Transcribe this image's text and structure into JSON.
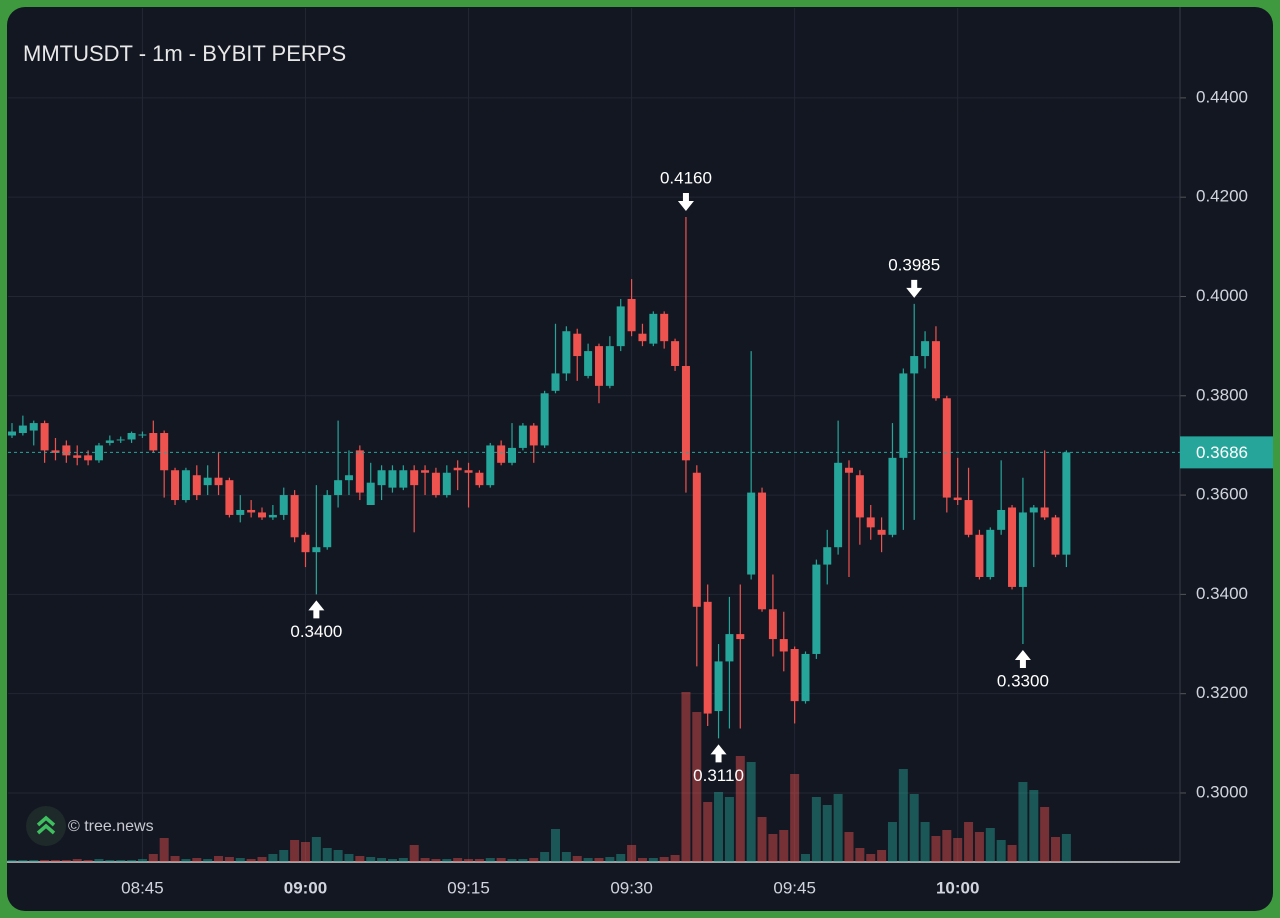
{
  "chart_data": {
    "type": "candlestick",
    "title": "MMTUSDT - 1m - BYBIT PERPS",
    "watermark": "© tree.news",
    "categories": [
      "08:33",
      "08:34",
      "08:35",
      "08:36",
      "08:37",
      "08:38",
      "08:39",
      "08:40",
      "08:41",
      "08:42",
      "08:43",
      "08:44",
      "08:45",
      "08:46",
      "08:47",
      "08:48",
      "08:49",
      "08:50",
      "08:51",
      "08:52",
      "08:53",
      "08:54",
      "08:55",
      "08:56",
      "08:57",
      "08:58",
      "08:59",
      "09:00",
      "09:01",
      "09:02",
      "09:03",
      "09:04",
      "09:05",
      "09:06",
      "09:07",
      "09:08",
      "09:09",
      "09:10",
      "09:11",
      "09:12",
      "09:13",
      "09:14",
      "09:15",
      "09:16",
      "09:17",
      "09:18",
      "09:19",
      "09:20",
      "09:21",
      "09:22",
      "09:23",
      "09:24",
      "09:25",
      "09:26",
      "09:27",
      "09:28",
      "09:29",
      "09:30",
      "09:31",
      "09:32",
      "09:33",
      "09:34",
      "09:35",
      "09:36",
      "09:37",
      "09:38",
      "09:39",
      "09:40",
      "09:41",
      "09:42",
      "09:43",
      "09:44",
      "09:45",
      "09:46",
      "09:47",
      "09:48",
      "09:49",
      "09:50",
      "09:51",
      "09:52",
      "09:53",
      "09:54",
      "09:55",
      "09:56",
      "09:57",
      "09:58",
      "09:59",
      "10:00",
      "10:01",
      "10:02",
      "10:03",
      "10:04",
      "10:05",
      "10:06",
      "10:07",
      "10:08",
      "10:09",
      "10:10"
    ],
    "open": [
      0.372,
      0.3725,
      0.373,
      0.3745,
      0.369,
      0.37,
      0.368,
      0.368,
      0.367,
      0.3705,
      0.371,
      0.3712,
      0.372,
      0.3725,
      0.3725,
      0.365,
      0.359,
      0.364,
      0.362,
      0.3635,
      0.363,
      0.356,
      0.357,
      0.3565,
      0.3555,
      0.356,
      0.36,
      0.352,
      0.3485,
      0.3495,
      0.36,
      0.363,
      0.369,
      0.358,
      0.362,
      0.3615,
      0.3615,
      0.365,
      0.365,
      0.3645,
      0.36,
      0.3655,
      0.365,
      0.3645,
      0.362,
      0.37,
      0.3665,
      0.3695,
      0.374,
      0.37,
      0.381,
      0.3845,
      0.3925,
      0.384,
      0.39,
      0.382,
      0.39,
      0.3995,
      0.3925,
      0.3905,
      0.3965,
      0.391,
      0.386,
      0.3645,
      0.3385,
      0.3165,
      0.3265,
      0.332,
      0.344,
      0.3605,
      0.337,
      0.331,
      0.329,
      0.3185,
      0.328,
      0.346,
      0.3495,
      0.3655,
      0.364,
      0.3555,
      0.353,
      0.352,
      0.3675,
      0.3845,
      0.388,
      0.391,
      0.3795,
      0.3595,
      0.359,
      0.352,
      0.3435,
      0.353,
      0.3575,
      0.3415,
      0.3565,
      0.3575,
      0.3555,
      0.348
    ],
    "high": [
      0.3745,
      0.376,
      0.375,
      0.375,
      0.3715,
      0.371,
      0.37,
      0.369,
      0.3705,
      0.372,
      0.3718,
      0.3728,
      0.3728,
      0.375,
      0.373,
      0.3655,
      0.3655,
      0.366,
      0.366,
      0.3685,
      0.3635,
      0.36,
      0.359,
      0.3575,
      0.358,
      0.3615,
      0.361,
      0.3525,
      0.362,
      0.361,
      0.375,
      0.369,
      0.37,
      0.3665,
      0.366,
      0.366,
      0.366,
      0.366,
      0.366,
      0.3655,
      0.366,
      0.367,
      0.3665,
      0.365,
      0.3705,
      0.371,
      0.3745,
      0.3745,
      0.3745,
      0.381,
      0.3945,
      0.394,
      0.3935,
      0.3905,
      0.3905,
      0.392,
      0.3995,
      0.4035,
      0.3945,
      0.397,
      0.397,
      0.3915,
      0.416,
      0.366,
      0.342,
      0.33,
      0.3395,
      0.342,
      0.389,
      0.3615,
      0.344,
      0.3365,
      0.3295,
      0.3285,
      0.347,
      0.353,
      0.375,
      0.367,
      0.365,
      0.358,
      0.3555,
      0.3745,
      0.3855,
      0.3985,
      0.393,
      0.394,
      0.38,
      0.3675,
      0.3655,
      0.353,
      0.3535,
      0.367,
      0.358,
      0.3635,
      0.358,
      0.369,
      0.356,
      0.369
    ],
    "low": [
      0.3715,
      0.372,
      0.37,
      0.3665,
      0.367,
      0.3665,
      0.366,
      0.366,
      0.3665,
      0.37,
      0.3705,
      0.3705,
      0.3715,
      0.3685,
      0.3595,
      0.358,
      0.3585,
      0.359,
      0.36,
      0.36,
      0.3555,
      0.3545,
      0.3555,
      0.355,
      0.355,
      0.355,
      0.3505,
      0.3455,
      0.34,
      0.349,
      0.3575,
      0.36,
      0.359,
      0.358,
      0.359,
      0.3605,
      0.361,
      0.3525,
      0.36,
      0.3595,
      0.3595,
      0.361,
      0.3575,
      0.3615,
      0.3615,
      0.366,
      0.366,
      0.369,
      0.3665,
      0.3695,
      0.3805,
      0.383,
      0.383,
      0.3835,
      0.3785,
      0.3815,
      0.389,
      0.392,
      0.39,
      0.39,
      0.3895,
      0.385,
      0.3605,
      0.3255,
      0.3135,
      0.311,
      0.313,
      0.313,
      0.343,
      0.3365,
      0.3275,
      0.3245,
      0.314,
      0.318,
      0.327,
      0.342,
      0.348,
      0.3435,
      0.35,
      0.351,
      0.3485,
      0.3515,
      0.353,
      0.355,
      0.3855,
      0.379,
      0.3565,
      0.358,
      0.3515,
      0.343,
      0.343,
      0.352,
      0.341,
      0.33,
      0.3455,
      0.355,
      0.3475,
      0.3455
    ],
    "close": [
      0.3728,
      0.374,
      0.3745,
      0.369,
      0.3685,
      0.368,
      0.3675,
      0.367,
      0.37,
      0.371,
      0.3712,
      0.3725,
      0.3722,
      0.369,
      0.365,
      0.359,
      0.365,
      0.36,
      0.3635,
      0.362,
      0.356,
      0.357,
      0.3565,
      0.3555,
      0.356,
      0.36,
      0.3515,
      0.3485,
      0.3495,
      0.36,
      0.363,
      0.364,
      0.3605,
      0.3625,
      0.365,
      0.365,
      0.365,
      0.362,
      0.3645,
      0.36,
      0.3645,
      0.365,
      0.3645,
      0.362,
      0.37,
      0.3665,
      0.3695,
      0.374,
      0.37,
      0.3805,
      0.3845,
      0.393,
      0.388,
      0.389,
      0.382,
      0.39,
      0.398,
      0.393,
      0.391,
      0.3965,
      0.391,
      0.386,
      0.367,
      0.3375,
      0.316,
      0.3265,
      0.332,
      0.331,
      0.3605,
      0.337,
      0.331,
      0.3285,
      0.3185,
      0.328,
      0.346,
      0.3495,
      0.3665,
      0.3645,
      0.3555,
      0.3535,
      0.352,
      0.3675,
      0.3845,
      0.388,
      0.391,
      0.3795,
      0.3595,
      0.359,
      0.352,
      0.3435,
      0.353,
      0.357,
      0.3415,
      0.3565,
      0.3575,
      0.3555,
      0.348,
      0.3686
    ],
    "volume": [
      2,
      2,
      2,
      2,
      2,
      2,
      3,
      2,
      3,
      2,
      2,
      2,
      3,
      8,
      24,
      6,
      3,
      4,
      3,
      6,
      5,
      4,
      3,
      5,
      8,
      12,
      22,
      20,
      25,
      14,
      12,
      8,
      6,
      5,
      4,
      3,
      4,
      17,
      4,
      3,
      3,
      4,
      3,
      3,
      4,
      4,
      3,
      3,
      4,
      10,
      33,
      10,
      6,
      4,
      4,
      5,
      8,
      17,
      4,
      4,
      5,
      7,
      170,
      150,
      60,
      70,
      65,
      106,
      100,
      45,
      28,
      32,
      88,
      8,
      65,
      57,
      68,
      30,
      14,
      8,
      12,
      40,
      93,
      68,
      40,
      26,
      32,
      24,
      40,
      30,
      34,
      22,
      17,
      80,
      72,
      55,
      25,
      28
    ],
    "up_color": "#26a69a",
    "down_color": "#ef5350",
    "ylim": [
      0.2861,
      0.4581
    ],
    "yticks": [
      {
        "value": 0.3,
        "label": "0.3000"
      },
      {
        "value": 0.32,
        "label": "0.3200"
      },
      {
        "value": 0.34,
        "label": "0.3400"
      },
      {
        "value": 0.36,
        "label": "0.3600"
      },
      {
        "value": 0.38,
        "label": "0.3800"
      },
      {
        "value": 0.4,
        "label": "0.4000"
      },
      {
        "value": 0.42,
        "label": "0.4200"
      },
      {
        "value": 0.44,
        "label": "0.4400"
      }
    ],
    "xticks": [
      "08:45",
      "09:00",
      "09:15",
      "09:30",
      "09:45",
      "10:00"
    ],
    "grid": true,
    "last_price": {
      "value": 0.3686,
      "label": "0.3686"
    },
    "annotations": [
      {
        "label": "0.3400",
        "value": 0.34,
        "at": "09:01",
        "side": "low"
      },
      {
        "label": "0.4160",
        "value": 0.416,
        "at": "09:35",
        "side": "high"
      },
      {
        "label": "0.3110",
        "value": 0.311,
        "at": "09:38",
        "side": "low"
      },
      {
        "label": "0.3985",
        "value": 0.3985,
        "at": "09:56",
        "side": "high"
      },
      {
        "label": "0.3300",
        "value": 0.33,
        "at": "10:06",
        "side": "low"
      }
    ]
  }
}
